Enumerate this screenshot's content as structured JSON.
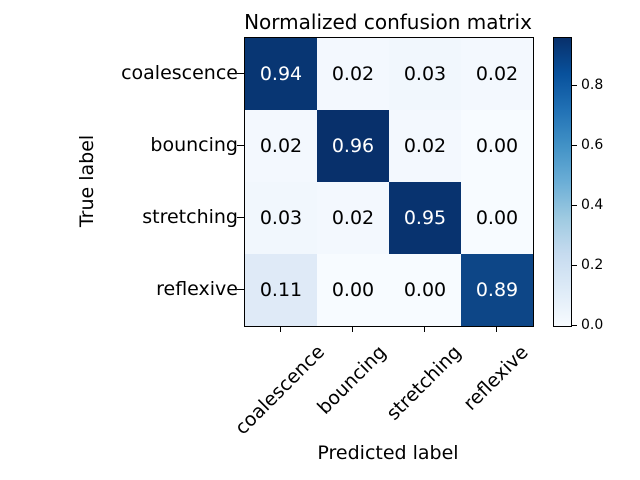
{
  "chart_data": {
    "type": "heatmap",
    "title": "Normalized confusion matrix",
    "xlabel": "Predicted label",
    "ylabel": "True label",
    "x_tick_labels": [
      "coalescence",
      "bouncing",
      "stretching",
      "reflexive"
    ],
    "y_tick_labels": [
      "coalescence",
      "bouncing",
      "stretching",
      "reflexive"
    ],
    "values": [
      [
        0.94,
        0.02,
        0.03,
        0.02
      ],
      [
        0.02,
        0.96,
        0.02,
        0.0
      ],
      [
        0.03,
        0.02,
        0.95,
        0.0
      ],
      [
        0.11,
        0.0,
        0.0,
        0.89
      ]
    ],
    "cell_labels": [
      [
        "0.94",
        "0.02",
        "0.03",
        "0.02"
      ],
      [
        "0.02",
        "0.96",
        "0.02",
        "0.00"
      ],
      [
        "0.03",
        "0.02",
        "0.95",
        "0.00"
      ],
      [
        "0.11",
        "0.00",
        "0.00",
        "0.89"
      ]
    ],
    "cell_colors": [
      [
        "#083673",
        "#f3f8fe",
        "#f1f7fd",
        "#f3f8fe"
      ],
      [
        "#f3f8fe",
        "#08306b",
        "#f3f8fe",
        "#f7fbff"
      ],
      [
        "#f1f7fd",
        "#f3f8fe",
        "#08336f",
        "#f7fbff"
      ],
      [
        "#dfeaf7",
        "#f7fbff",
        "#f7fbff",
        "#0d4687"
      ]
    ],
    "colormap": "Blues",
    "text_threshold": 0.48,
    "text_color_low": "#000000",
    "text_color_high": "#ffffff",
    "grid": false,
    "colorbar": {
      "vmin": 0.0,
      "vmax": 0.96,
      "tick_labels": [
        "0.0",
        "0.2",
        "0.4",
        "0.6",
        "0.8"
      ],
      "tick_values": [
        0.0,
        0.2,
        0.4,
        0.6,
        0.8
      ],
      "position": "right"
    }
  }
}
